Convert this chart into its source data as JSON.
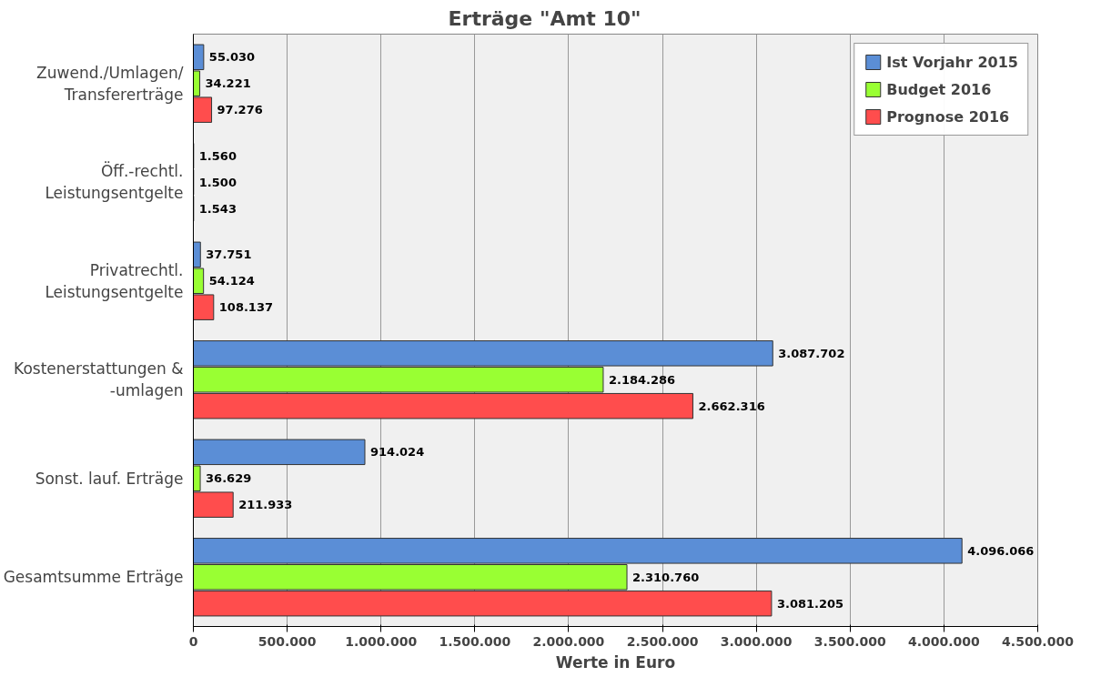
{
  "chart_data": {
    "type": "bar",
    "orientation": "horizontal",
    "title": "Erträge \"Amt 10\"",
    "xlabel": "Werte in Euro",
    "categories": [
      "Zuwend./Umlagen/\nTransfererträge",
      "Öff.-rechtl.\nLeistungsentgelte",
      "Privatrechtl.\nLeistungsentgelte",
      "Kostenerstattungen &\n-umlagen",
      "Sonst. lauf. Erträge",
      "Gesamtsumme Erträge"
    ],
    "series": [
      {
        "name": "Ist Vorjahr 2015",
        "color": "#5b8ed6",
        "values": [
          55030,
          1560,
          37751,
          3087702,
          914024,
          4096066
        ],
        "value_labels": [
          "55.030",
          "1.560",
          "37.751",
          "3.087.702",
          "914.024",
          "4.096.066"
        ]
      },
      {
        "name": "Budget 2016",
        "color": "#99ff33",
        "values": [
          34221,
          1500,
          54124,
          2184286,
          36629,
          2310760
        ],
        "value_labels": [
          "34.221",
          "1.500",
          "54.124",
          "2.184.286",
          "36.629",
          "2.310.760"
        ]
      },
      {
        "name": "Prognose 2016",
        "color": "#ff4d4d",
        "values": [
          97276,
          1543,
          108137,
          2662316,
          211933,
          3081205
        ],
        "value_labels": [
          "97.276",
          "1.543",
          "108.137",
          "2.662.316",
          "211.933",
          "3.081.205"
        ]
      }
    ],
    "xlim": [
      0,
      4500000
    ],
    "xticks": [
      0,
      {
        "value": 500000,
        "label": "500.000"
      },
      {
        "value": 1000000,
        "label": "1.000.000"
      },
      {
        "value": 1500000,
        "label": "1.500.000"
      },
      {
        "value": 2000000,
        "label": "2.000.000"
      },
      {
        "value": 2500000,
        "label": "2.500.000"
      },
      {
        "value": 3000000,
        "label": "3.000.000"
      },
      {
        "value": 3500000,
        "label": "3.500.000"
      },
      {
        "value": 4000000,
        "label": "4.000.000"
      },
      {
        "value": 4500000,
        "label": "4.500.000"
      }
    ],
    "grid": "x",
    "legend": "top right"
  }
}
